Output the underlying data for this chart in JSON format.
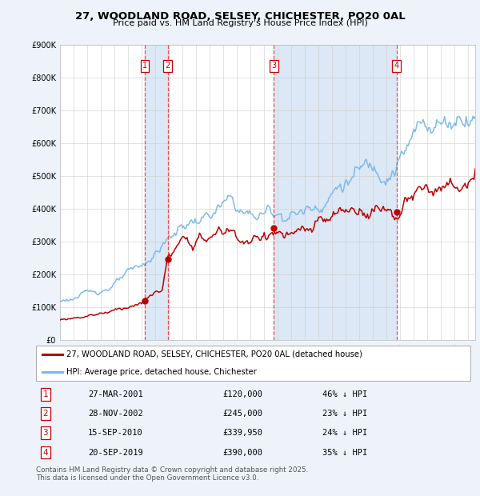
{
  "title": "27, WOODLAND ROAD, SELSEY, CHICHESTER, PO20 0AL",
  "subtitle": "Price paid vs. HM Land Registry's House Price Index (HPI)",
  "property_label": "27, WOODLAND ROAD, SELSEY, CHICHESTER, PO20 0AL (detached house)",
  "hpi_label": "HPI: Average price, detached house, Chichester",
  "footer": "Contains HM Land Registry data © Crown copyright and database right 2025.\nThis data is licensed under the Open Government Licence v3.0.",
  "sales": [
    {
      "num": 1,
      "date": "27-MAR-2001",
      "price": 120000,
      "year": 2001.23,
      "pct": "46%"
    },
    {
      "num": 2,
      "date": "28-NOV-2002",
      "price": 245000,
      "year": 2002.91,
      "pct": "23%"
    },
    {
      "num": 3,
      "date": "15-SEP-2010",
      "price": 339950,
      "year": 2010.71,
      "pct": "24%"
    },
    {
      "num": 4,
      "date": "20-SEP-2019",
      "price": 390000,
      "year": 2019.72,
      "pct": "35%"
    }
  ],
  "ylim": [
    0,
    900000
  ],
  "xlim_start": 1995.0,
  "xlim_end": 2025.5,
  "property_color": "#bb0000",
  "hpi_color": "#7ab8e8",
  "background_color": "#eef3fb",
  "plot_bg": "#ffffff",
  "marker_box_color": "#cc0000",
  "vline_color": "#ee3333",
  "shade_color": "#dce8f5"
}
